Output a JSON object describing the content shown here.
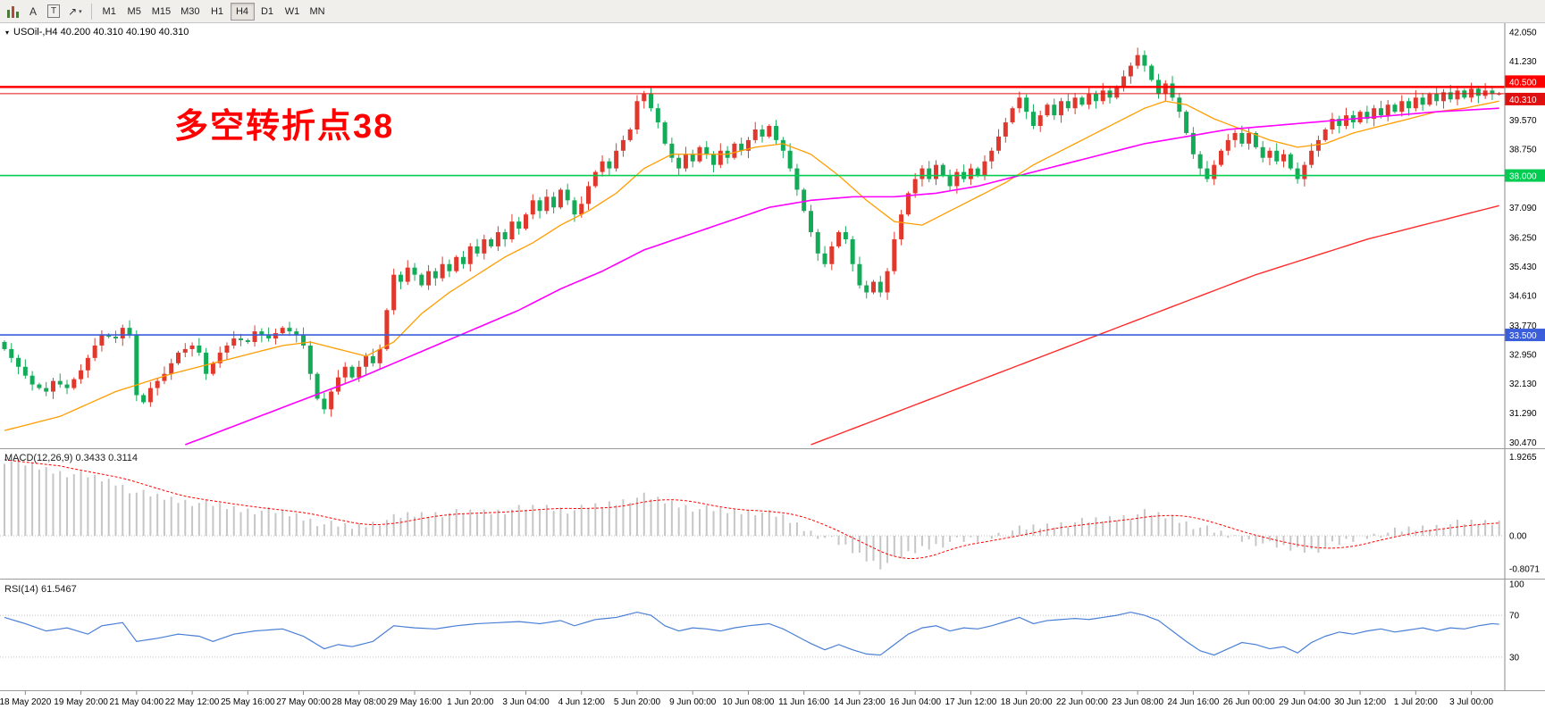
{
  "toolbar": {
    "tools": {
      "a_label": "A",
      "t_label": "T",
      "arrow_label": "↗",
      "caret": "▾"
    },
    "timeframes": [
      "M1",
      "M5",
      "M15",
      "M30",
      "H1",
      "H4",
      "D1",
      "W1",
      "MN"
    ],
    "active_timeframe": "H4"
  },
  "chart_header": {
    "dropdown_glyph": "▾",
    "title": "USOil-,H4 40.200 40.310 40.190 40.310"
  },
  "annotation": {
    "text": "多空转折点38",
    "color": "#ff0000"
  },
  "indicators": {
    "macd_title": "MACD(12,26,9) 0.3433 0.3114",
    "rsi_title": "RSI(14) 61.5467"
  },
  "chart_data": {
    "type": "candlestick",
    "symbol": "USOil-",
    "timeframe": "H4",
    "ohlc_display": {
      "open": "40.200",
      "high": "40.310",
      "low": "40.190",
      "close": "40.310"
    },
    "price_range": [
      30.3,
      42.3
    ],
    "price_axis_ticks": [
      "42.050",
      "41.230",
      "39.570",
      "38.750",
      "37.090",
      "36.250",
      "35.430",
      "34.610",
      "33.770",
      "32.950",
      "32.130",
      "31.290",
      "30.470"
    ],
    "hlines": [
      {
        "name": "resistance-line-40500",
        "value": 40.5,
        "label": "40.500",
        "color": "#ff0000",
        "width": 2.5,
        "anchor": "above"
      },
      {
        "name": "current-price-line",
        "value": 40.31,
        "label": "40.310",
        "color": "#e01010",
        "width": 1,
        "anchor": "below"
      },
      {
        "name": "pivot-line-38000",
        "value": 38.0,
        "label": "38.000",
        "color": "#00cc52",
        "width": 1.6,
        "anchor": "center"
      },
      {
        "name": "support-line-33500",
        "value": 33.5,
        "label": "33.500",
        "color": "#3a5dd9",
        "width": 1.6,
        "anchor": "center"
      }
    ],
    "bars": 216,
    "label_first_bar": 3,
    "label_bar_step": 8,
    "date_labels": [
      "18 May 2020",
      "19 May 20:00",
      "21 May 04:00",
      "22 May 12:00",
      "25 May 16:00",
      "27 May 00:00",
      "28 May 08:00",
      "29 May 16:00",
      "1 Jun 20:00",
      "3 Jun 04:00",
      "4 Jun 12:00",
      "5 Jun 20:00",
      "9 Jun 00:00",
      "10 Jun 08:00",
      "11 Jun 16:00",
      "14 Jun 23:00",
      "16 Jun 04:00",
      "17 Jun 12:00",
      "18 Jun 20:00",
      "22 Jun 00:00",
      "23 Jun 08:00",
      "24 Jun 16:00",
      "26 Jun 00:00",
      "29 Jun 04:00",
      "30 Jun 12:00",
      "1 Jul 20:00",
      "3 Jul 00:00"
    ],
    "up_color": "#e0382c",
    "down_color": "#13aa58",
    "closes": [
      33.1,
      32.85,
      32.6,
      32.35,
      32.1,
      32.0,
      31.9,
      32.2,
      32.1,
      32.0,
      32.25,
      32.5,
      32.85,
      33.2,
      33.5,
      33.45,
      33.4,
      33.7,
      33.5,
      31.8,
      31.6,
      32.0,
      32.2,
      32.4,
      32.7,
      33.0,
      33.1,
      33.2,
      33.0,
      32.4,
      32.7,
      33.0,
      33.2,
      33.4,
      33.35,
      33.3,
      33.6,
      33.5,
      33.4,
      33.55,
      33.7,
      33.6,
      33.5,
      33.2,
      32.4,
      31.7,
      31.4,
      31.9,
      32.3,
      32.6,
      32.3,
      32.6,
      32.9,
      32.7,
      33.1,
      34.2,
      35.2,
      35.0,
      35.4,
      35.2,
      34.9,
      35.3,
      35.1,
      35.5,
      35.3,
      35.7,
      35.5,
      36.0,
      35.8,
      36.2,
      36.0,
      36.4,
      36.2,
      36.7,
      36.5,
      36.9,
      37.3,
      37.0,
      37.4,
      37.1,
      37.6,
      37.3,
      36.9,
      37.2,
      37.7,
      38.1,
      38.4,
      38.2,
      38.7,
      39.0,
      39.3,
      40.1,
      40.3,
      39.9,
      39.5,
      38.9,
      38.5,
      38.2,
      38.6,
      38.4,
      38.8,
      38.6,
      38.3,
      38.7,
      38.5,
      38.9,
      38.7,
      39.0,
      39.3,
      39.1,
      39.4,
      39.0,
      38.7,
      38.2,
      37.6,
      37.0,
      36.4,
      35.8,
      35.5,
      36.0,
      36.4,
      36.2,
      35.5,
      34.9,
      34.7,
      35.0,
      34.7,
      35.3,
      36.2,
      36.9,
      37.5,
      37.9,
      38.2,
      37.9,
      38.3,
      38.0,
      37.7,
      38.1,
      37.9,
      38.2,
      38.0,
      38.4,
      38.7,
      39.1,
      39.5,
      39.9,
      40.2,
      39.8,
      39.4,
      39.7,
      40.0,
      39.7,
      40.1,
      39.9,
      40.2,
      40.0,
      40.3,
      40.1,
      40.4,
      40.2,
      40.5,
      40.8,
      41.1,
      41.4,
      41.1,
      40.7,
      40.3,
      40.6,
      40.2,
      39.8,
      39.2,
      38.6,
      38.2,
      37.9,
      38.3,
      38.7,
      39.0,
      39.2,
      38.9,
      39.2,
      38.8,
      38.5,
      38.7,
      38.4,
      38.6,
      38.2,
      37.9,
      38.3,
      38.7,
      39.0,
      39.3,
      39.6,
      39.4,
      39.7,
      39.5,
      39.8,
      39.6,
      39.9,
      39.7,
      40.0,
      39.8,
      40.1,
      39.9,
      40.2,
      40.0,
      40.3,
      40.1,
      40.35,
      40.15,
      40.4,
      40.2,
      40.45,
      40.25,
      40.4,
      40.3,
      40.31
    ],
    "ma_fast": {
      "color": "#ff9d00",
      "points": [
        [
          0,
          30.8
        ],
        [
          8,
          31.2
        ],
        [
          16,
          31.9
        ],
        [
          24,
          32.4
        ],
        [
          32,
          32.8
        ],
        [
          40,
          33.2
        ],
        [
          44,
          33.3
        ],
        [
          48,
          33.1
        ],
        [
          52,
          32.9
        ],
        [
          56,
          33.3
        ],
        [
          60,
          34.1
        ],
        [
          64,
          34.7
        ],
        [
          68,
          35.2
        ],
        [
          72,
          35.7
        ],
        [
          76,
          36.1
        ],
        [
          80,
          36.6
        ],
        [
          84,
          37.0
        ],
        [
          88,
          37.5
        ],
        [
          92,
          38.2
        ],
        [
          96,
          38.6
        ],
        [
          100,
          38.6
        ],
        [
          104,
          38.6
        ],
        [
          108,
          38.8
        ],
        [
          112,
          38.9
        ],
        [
          116,
          38.6
        ],
        [
          120,
          38.0
        ],
        [
          124,
          37.3
        ],
        [
          128,
          36.7
        ],
        [
          132,
          36.6
        ],
        [
          136,
          37.0
        ],
        [
          140,
          37.4
        ],
        [
          144,
          37.8
        ],
        [
          148,
          38.3
        ],
        [
          152,
          38.7
        ],
        [
          156,
          39.1
        ],
        [
          160,
          39.5
        ],
        [
          164,
          39.9
        ],
        [
          167,
          40.1
        ],
        [
          170,
          40.0
        ],
        [
          174,
          39.6
        ],
        [
          178,
          39.3
        ],
        [
          182,
          39.0
        ],
        [
          186,
          38.8
        ],
        [
          190,
          38.9
        ],
        [
          194,
          39.2
        ],
        [
          198,
          39.4
        ],
        [
          202,
          39.6
        ],
        [
          206,
          39.8
        ],
        [
          210,
          39.9
        ],
        [
          215,
          40.1
        ]
      ]
    },
    "ma_mid": {
      "color": "#ff00ff",
      "points": [
        [
          26,
          30.4
        ],
        [
          34,
          31.0
        ],
        [
          42,
          31.6
        ],
        [
          50,
          32.2
        ],
        [
          56,
          32.7
        ],
        [
          62,
          33.2
        ],
        [
          68,
          33.7
        ],
        [
          74,
          34.2
        ],
        [
          80,
          34.8
        ],
        [
          86,
          35.3
        ],
        [
          92,
          35.9
        ],
        [
          98,
          36.3
        ],
        [
          104,
          36.7
        ],
        [
          110,
          37.1
        ],
        [
          116,
          37.3
        ],
        [
          122,
          37.4
        ],
        [
          128,
          37.4
        ],
        [
          134,
          37.5
        ],
        [
          140,
          37.7
        ],
        [
          146,
          38.0
        ],
        [
          152,
          38.3
        ],
        [
          158,
          38.6
        ],
        [
          164,
          38.9
        ],
        [
          170,
          39.1
        ],
        [
          176,
          39.3
        ],
        [
          182,
          39.4
        ],
        [
          188,
          39.5
        ],
        [
          194,
          39.6
        ],
        [
          200,
          39.7
        ],
        [
          206,
          39.8
        ],
        [
          215,
          39.9
        ]
      ]
    },
    "ma_slow": {
      "color": "#ff2a2a",
      "points": [
        [
          116,
          30.4
        ],
        [
          124,
          31.0
        ],
        [
          132,
          31.6
        ],
        [
          140,
          32.2
        ],
        [
          148,
          32.8
        ],
        [
          156,
          33.4
        ],
        [
          164,
          34.0
        ],
        [
          172,
          34.6
        ],
        [
          180,
          35.2
        ],
        [
          188,
          35.7
        ],
        [
          196,
          36.2
        ],
        [
          204,
          36.6
        ],
        [
          210,
          36.9
        ],
        [
          215,
          37.15
        ]
      ]
    },
    "macd": {
      "hist_color": "#c6c6c6",
      "signal_color": "#ff0000",
      "current_macd": 0.3433,
      "current_signal": 0.3114,
      "scale": [
        {
          "label": "1.9265",
          "value": 1.9265
        },
        {
          "label": "0.00",
          "value": 0
        },
        {
          "label": "-0.8071",
          "value": -0.8071
        }
      ],
      "points": [
        [
          0,
          1.85
        ],
        [
          4,
          1.7
        ],
        [
          8,
          1.55
        ],
        [
          12,
          1.45
        ],
        [
          16,
          1.3
        ],
        [
          19,
          1.05
        ],
        [
          22,
          0.95
        ],
        [
          26,
          0.85
        ],
        [
          30,
          0.75
        ],
        [
          34,
          0.65
        ],
        [
          38,
          0.6
        ],
        [
          42,
          0.5
        ],
        [
          46,
          0.28
        ],
        [
          50,
          0.22
        ],
        [
          54,
          0.35
        ],
        [
          58,
          0.5
        ],
        [
          62,
          0.55
        ],
        [
          66,
          0.55
        ],
        [
          70,
          0.6
        ],
        [
          74,
          0.65
        ],
        [
          78,
          0.7
        ],
        [
          82,
          0.62
        ],
        [
          86,
          0.75
        ],
        [
          90,
          0.9
        ],
        [
          92,
          0.95
        ],
        [
          96,
          0.8
        ],
        [
          100,
          0.65
        ],
        [
          104,
          0.6
        ],
        [
          108,
          0.6
        ],
        [
          112,
          0.45
        ],
        [
          116,
          0.1
        ],
        [
          120,
          -0.2
        ],
        [
          124,
          -0.55
        ],
        [
          126,
          -0.72
        ],
        [
          128,
          -0.6
        ],
        [
          132,
          -0.3
        ],
        [
          136,
          -0.15
        ],
        [
          140,
          -0.1
        ],
        [
          144,
          0.1
        ],
        [
          148,
          0.2
        ],
        [
          152,
          0.3
        ],
        [
          156,
          0.35
        ],
        [
          160,
          0.45
        ],
        [
          164,
          0.55
        ],
        [
          168,
          0.45
        ],
        [
          172,
          0.2
        ],
        [
          176,
          0.0
        ],
        [
          180,
          -0.15
        ],
        [
          184,
          -0.3
        ],
        [
          188,
          -0.35
        ],
        [
          192,
          -0.2
        ],
        [
          196,
          0.0
        ],
        [
          200,
          0.1
        ],
        [
          204,
          0.2
        ],
        [
          208,
          0.28
        ],
        [
          212,
          0.33
        ],
        [
          215,
          0.3433
        ]
      ]
    },
    "rsi": {
      "color": "#4a7fd6",
      "current": 61.5467,
      "levels": [
        70,
        30
      ],
      "scale": [
        {
          "label": "100",
          "value": 100
        },
        {
          "label": "70",
          "value": 70
        },
        {
          "label": "30",
          "value": 30
        }
      ],
      "points": [
        [
          0,
          68
        ],
        [
          3,
          62
        ],
        [
          6,
          55
        ],
        [
          9,
          58
        ],
        [
          12,
          52
        ],
        [
          14,
          60
        ],
        [
          17,
          63
        ],
        [
          19,
          45
        ],
        [
          22,
          48
        ],
        [
          25,
          52
        ],
        [
          28,
          50
        ],
        [
          30,
          45
        ],
        [
          33,
          52
        ],
        [
          36,
          55
        ],
        [
          40,
          57
        ],
        [
          43,
          50
        ],
        [
          46,
          38
        ],
        [
          48,
          42
        ],
        [
          50,
          40
        ],
        [
          53,
          45
        ],
        [
          56,
          60
        ],
        [
          59,
          58
        ],
        [
          62,
          57
        ],
        [
          65,
          60
        ],
        [
          68,
          62
        ],
        [
          71,
          63
        ],
        [
          74,
          64
        ],
        [
          77,
          62
        ],
        [
          80,
          65
        ],
        [
          82,
          60
        ],
        [
          85,
          66
        ],
        [
          88,
          68
        ],
        [
          91,
          73
        ],
        [
          93,
          70
        ],
        [
          95,
          60
        ],
        [
          97,
          55
        ],
        [
          99,
          58
        ],
        [
          101,
          57
        ],
        [
          103,
          55
        ],
        [
          105,
          58
        ],
        [
          107,
          60
        ],
        [
          110,
          62
        ],
        [
          112,
          57
        ],
        [
          114,
          50
        ],
        [
          116,
          43
        ],
        [
          118,
          37
        ],
        [
          120,
          42
        ],
        [
          122,
          37
        ],
        [
          124,
          33
        ],
        [
          126,
          32
        ],
        [
          128,
          42
        ],
        [
          130,
          52
        ],
        [
          132,
          58
        ],
        [
          134,
          60
        ],
        [
          136,
          55
        ],
        [
          138,
          58
        ],
        [
          140,
          57
        ],
        [
          142,
          60
        ],
        [
          144,
          64
        ],
        [
          146,
          68
        ],
        [
          148,
          62
        ],
        [
          150,
          65
        ],
        [
          152,
          66
        ],
        [
          154,
          67
        ],
        [
          156,
          66
        ],
        [
          158,
          68
        ],
        [
          160,
          70
        ],
        [
          162,
          73
        ],
        [
          164,
          70
        ],
        [
          166,
          65
        ],
        [
          168,
          55
        ],
        [
          170,
          45
        ],
        [
          172,
          36
        ],
        [
          174,
          32
        ],
        [
          176,
          38
        ],
        [
          178,
          44
        ],
        [
          180,
          42
        ],
        [
          182,
          38
        ],
        [
          184,
          40
        ],
        [
          186,
          34
        ],
        [
          188,
          44
        ],
        [
          190,
          50
        ],
        [
          192,
          54
        ],
        [
          194,
          52
        ],
        [
          196,
          55
        ],
        [
          198,
          57
        ],
        [
          200,
          54
        ],
        [
          202,
          56
        ],
        [
          204,
          58
        ],
        [
          206,
          55
        ],
        [
          208,
          58
        ],
        [
          210,
          57
        ],
        [
          212,
          60
        ],
        [
          214,
          62
        ],
        [
          215,
          61.5
        ]
      ]
    }
  }
}
